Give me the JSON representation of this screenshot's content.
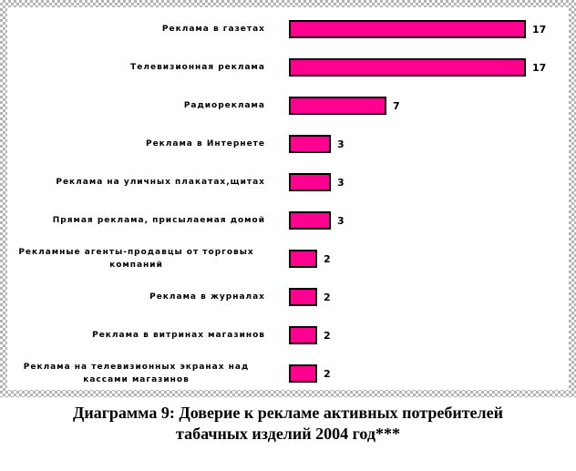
{
  "chart_data": {
    "type": "bar",
    "orientation": "horizontal",
    "title": "Диаграмма 9: Доверие к рекламе активных потребителей табачных изделий 2004 год***",
    "categories": [
      "Реклама в газетах",
      "Телевизионная реклама",
      "Радиореклама",
      "Реклама в Интернете",
      "Реклама на уличных плакатах,щитах",
      "Прямая реклама, присылаемая домой",
      "Рекламные агенты-продавцы от торговых компаний",
      "Реклама в журналах",
      "Реклама в витринах магазинов",
      "Реклама на телевизионных экранах над кассами магазинов"
    ],
    "values": [
      17,
      17,
      7,
      3,
      3,
      3,
      2,
      2,
      2,
      2
    ],
    "xlabel": "",
    "ylabel": "",
    "xlim": [
      0,
      18
    ],
    "grid": false,
    "legend": false,
    "value_labels_shown": true,
    "bar_color": "#FF0090",
    "bar_border_color": "#000000",
    "frame_checker_color": "#b4b4b4"
  },
  "caption": {
    "line1": "Диаграмма 9: Доверие к рекламе активных потребителей",
    "line2": "табачных изделий  2004 год***"
  }
}
